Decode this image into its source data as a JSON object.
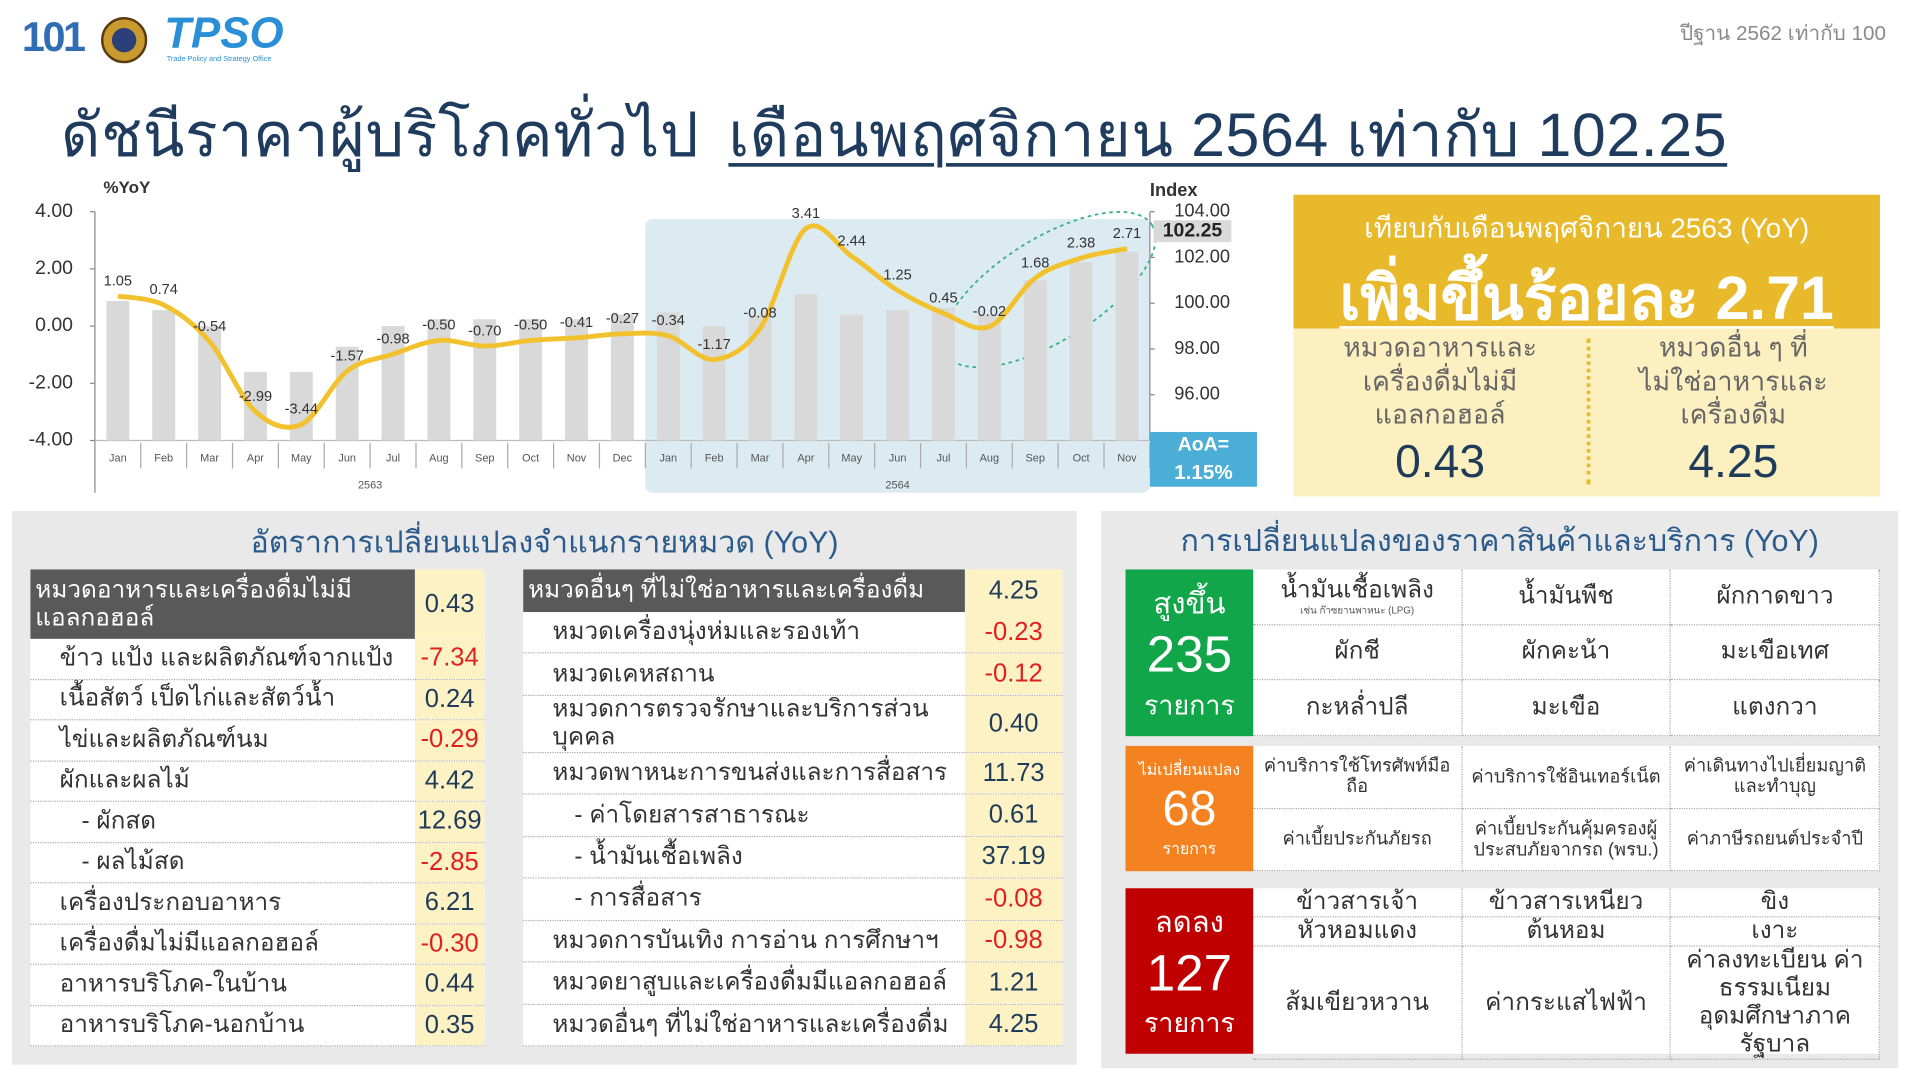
{
  "header": {
    "logo_101": "101",
    "logo_tpso": "TPSO",
    "logo_tpso_sub": "Trade Policy and Strategy Office",
    "base_note": "ปีฐาน 2562 เท่ากับ 100",
    "title": "ดัชนีราคาผู้บริโภคทั่วไป",
    "title_highlight": "เดือนพฤศจิกายน 2564 เท่ากับ 102.25"
  },
  "chart_data": {
    "type": "bar",
    "y_label": "%YoY",
    "y2_label": "Index",
    "categories": [
      "Jan",
      "Feb",
      "Mar",
      "Apr",
      "May",
      "Jun",
      "Jul",
      "Aug",
      "Sep",
      "Oct",
      "Nov",
      "Dec",
      "Jan",
      "Feb",
      "Mar",
      "Apr",
      "May",
      "Jun",
      "Jul",
      "Aug",
      "Sep",
      "Oct",
      "Nov"
    ],
    "year_labels": [
      "2563",
      "2564"
    ],
    "series": [
      {
        "color": "#d9d9d9",
        "axis": "y2",
        "values": [
          100.1,
          99.7,
          99.0,
          97.0,
          97.0,
          98.1,
          99.0,
          99.3,
          99.3,
          99.3,
          99.3,
          99.5,
          99.6,
          99.0,
          99.5,
          100.4,
          99.5,
          99.7,
          99.8,
          99.5,
          101.0,
          101.8,
          102.25
        ]
      },
      {
        "type": "line",
        "color": "#f2c12e",
        "values": [
          1.05,
          0.74,
          -0.54,
          -2.99,
          -3.44,
          -1.57,
          -0.98,
          -0.5,
          -0.7,
          -0.5,
          -0.41,
          -0.27,
          -0.34,
          -1.17,
          -0.08,
          3.41,
          2.44,
          1.25,
          0.45,
          -0.02,
          1.68,
          2.38,
          2.71
        ],
        "value_labels": [
          "1.05",
          "0.74",
          "-0.54",
          "-2.99",
          "-3.44",
          "-1.57",
          "-0.98",
          "-0.50",
          "-0.70",
          "-0.50",
          "-0.41",
          "-0.27",
          "-0.34",
          "-1.17",
          "-0.08",
          "3.41",
          "2.44",
          "1.25",
          "0.45",
          "-0.02",
          "1.68",
          "2.38",
          "2.71"
        ]
      }
    ],
    "ylim": [
      -4,
      4
    ],
    "yticks": [
      {
        "value": -4,
        "label": "-4.00"
      },
      {
        "value": -2,
        "label": "-2.00"
      },
      {
        "value": 0,
        "label": "0.00"
      },
      {
        "value": 2,
        "label": "2.00"
      },
      {
        "value": 4,
        "label": "4.00"
      }
    ],
    "y2lim": [
      94,
      104
    ],
    "y2ticks": [
      {
        "value": 96,
        "label": "96.00"
      },
      {
        "value": 98,
        "label": "98.00"
      },
      {
        "value": 100,
        "label": "100.00"
      },
      {
        "value": 102,
        "label": "102.00"
      },
      {
        "value": 104,
        "label": "104.00"
      }
    ],
    "label_last_bar": true,
    "annotation": {
      "title": "AoA=",
      "text": "1.15%"
    }
  },
  "summary": {
    "compare": "เทียบกับเดือนพฤศจิกายน 2563 (YoY)",
    "headline": "เพิ่มขึ้นร้อยละ 2.71",
    "groups": [
      {
        "label": "หมวดอาหารและเครื่องดื่มไม่มีแอลกอฮอล์",
        "value": "0.43"
      },
      {
        "label": "หมวดอื่น ๆ ที่ไม่ใช่อาหารและเครื่องดื่ม",
        "value": "4.25"
      }
    ]
  },
  "category_table": {
    "title": "อัตราการเปลี่ยนแปลงจำแนกรายหมวด (YoY)",
    "columns": [
      {
        "rows": [
          [
            "หมวดอาหารและเครื่องดื่มไม่มีแอลกอฮอล์",
            "0.43"
          ],
          [
            "ข้าว แป้ง และผลิตภัณฑ์จากแป้ง",
            "-7.34"
          ],
          [
            "เนื้อสัตว์ เป็ดไก่และสัตว์น้ำ",
            "0.24"
          ],
          [
            "ไข่และผลิตภัณฑ์นม",
            "-0.29"
          ],
          [
            "ผักและผลไม้",
            "4.42"
          ],
          [
            "- ผักสด",
            "12.69"
          ],
          [
            "- ผลไม้สด",
            "-2.85"
          ],
          [
            "เครื่องประกอบอาหาร",
            "6.21"
          ],
          [
            "เครื่องดื่มไม่มีแอลกอฮอล์",
            "-0.30"
          ],
          [
            "อาหารบริโภค-ในบ้าน",
            "0.44"
          ],
          [
            "อาหารบริโภค-นอกบ้าน",
            "0.35"
          ]
        ]
      },
      {
        "rows": [
          [
            "หมวดอื่นๆ ที่ไม่ใช่อาหารและเครื่องดื่ม",
            "4.25"
          ],
          [
            "หมวดเครื่องนุ่งห่มและรองเท้า",
            "-0.23"
          ],
          [
            "หมวดเคหสถาน",
            "-0.12"
          ],
          [
            "หมวดการตรวจรักษาและบริการส่วนบุคคล",
            "0.40"
          ],
          [
            "หมวดพาหนะการขนส่งและการสื่อสาร",
            "11.73"
          ],
          [
            "- ค่าโดยสารสาธารณะ",
            "0.61"
          ],
          [
            "- น้ำมันเชื้อเพลิง",
            "37.19"
          ],
          [
            "- การสื่อสาร",
            "-0.08"
          ],
          [
            "หมวดการบันเทิง การอ่าน การศึกษาฯ",
            "-0.98"
          ],
          [
            "หมวดยาสูบและเครื่องดื่มมีแอลกอฮอล์",
            "1.21"
          ],
          [
            "หมวดอื่นๆ ที่ไม่ใช่อาหารและเครื่องดื่ม",
            "4.25"
          ]
        ]
      }
    ]
  },
  "items_panel": {
    "title": "การเปลี่ยนแปลงของราคาสินค้าและบริการ (YoY)",
    "groups": [
      {
        "status": "สูงขึ้น",
        "count": 235,
        "unit": "รายการ",
        "color": "#12a64a",
        "items": [
          {
            "text": "น้ำมันเชื้อเพลิง",
            "note": "เช่น ก๊าซยานพาหนะ (LPG)"
          },
          {
            "text": "น้ำมันพืช"
          },
          {
            "text": "ผักกาดขาว"
          },
          {
            "text": "ผักชี"
          },
          {
            "text": "ผักคะน้า"
          },
          {
            "text": "มะเขือเทศ"
          },
          {
            "text": "กะหล่ำปลี"
          },
          {
            "text": "มะเขือ"
          },
          {
            "text": "แตงกวา"
          }
        ]
      },
      {
        "status": "ไม่เปลี่ยนแปลง",
        "count": 68,
        "unit": "รายการ",
        "color": "#f58220",
        "items": [
          {
            "text": "ค่าบริการใช้โทรศัพท์มือถือ"
          },
          {
            "text": "ค่าบริการใช้อินเทอร์เน็ต"
          },
          {
            "text": "ค่าเดินทางไปเยี่ยมญาติและทำบุญ"
          },
          {
            "text": "ค่าเบี้ยประกันภัยรถ"
          },
          {
            "text": "ค่าเบี้ยประกันคุ้มครองผู้ประสบภัยจากรถ (พรบ.)"
          },
          {
            "text": "ค่าภาษีรถยนต์ประจำปี"
          }
        ]
      },
      {
        "status": "ลดลง",
        "count": 127,
        "unit": "รายการ",
        "color": "#c00000",
        "items": [
          {
            "text": "ข้าวสารเจ้า"
          },
          {
            "text": "ข้าวสารเหนียว"
          },
          {
            "text": "ขิง"
          },
          {
            "text": "หัวหอมแดง"
          },
          {
            "text": "ต้นหอม"
          },
          {
            "text": "เงาะ"
          },
          {
            "text": "ส้มเขียวหวาน"
          },
          {
            "text": "ค่ากระแสไฟฟ้า"
          },
          {
            "text": "ค่าลงทะเบียน ค่าธรรมเนียมอุดมศึกษาภาครัฐบาล"
          }
        ]
      }
    ]
  }
}
